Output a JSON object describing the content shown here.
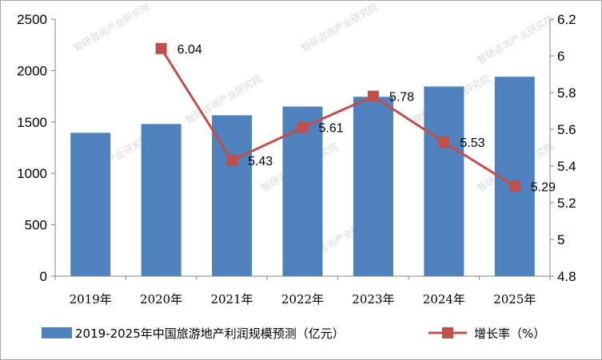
{
  "chart_data": {
    "type": "bar",
    "categories": [
      "2019年",
      "2020年",
      "2021年",
      "2022年",
      "2023年",
      "2024年",
      "2025年"
    ],
    "series": [
      {
        "name": "2019-2025年中国旅游地产利润规模预测（亿元）",
        "type": "bar",
        "axis": "left",
        "color": "#4f81bd",
        "values": [
          1395,
          1480,
          1565,
          1650,
          1745,
          1845,
          1940
        ]
      },
      {
        "name": "增长率（%）",
        "type": "line",
        "axis": "right",
        "color": "#c0504d",
        "values": [
          null,
          6.04,
          5.43,
          5.61,
          5.78,
          5.53,
          5.29
        ],
        "labels": [
          "",
          "6.04",
          "5.43",
          "5.61",
          "5.78",
          "5.53",
          "5.29"
        ]
      }
    ],
    "y_left": {
      "min": 0,
      "max": 2500,
      "ticks": [
        "0",
        "500",
        "1000",
        "1500",
        "2000",
        "2500"
      ]
    },
    "y_right": {
      "min": 4.8,
      "max": 6.2,
      "ticks": [
        "4.8",
        "5",
        "5.2",
        "5.4",
        "5.6",
        "5.8",
        "6",
        "6.2"
      ]
    },
    "legend_position": "bottom",
    "grid": false,
    "watermark": "智研咨询产业研究院"
  }
}
